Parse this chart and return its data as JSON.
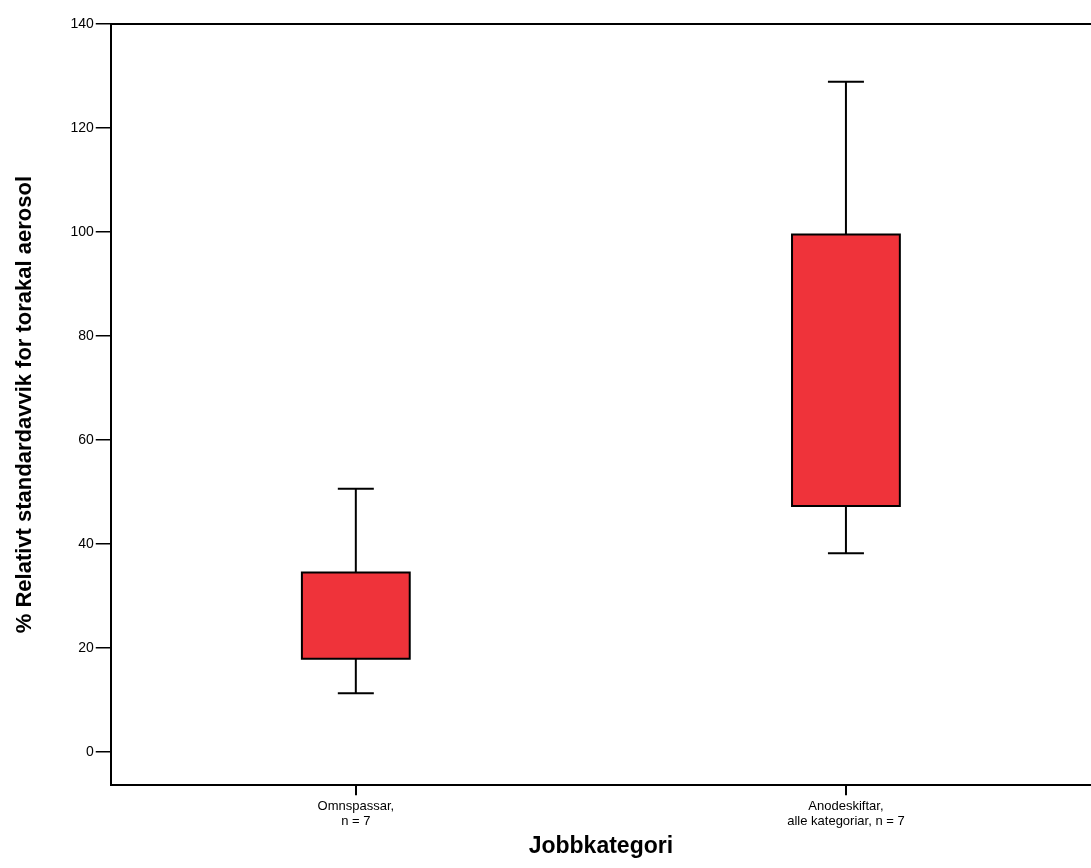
{
  "chart_data": {
    "type": "box",
    "xlabel": "Jobbkategori",
    "ylabel": "% Relativt standardavvik for torakal aerosol",
    "categories": [
      "Omnspassar,\nn = 7",
      "Anodeskiftar,\nalle kategoriar, n = 7"
    ],
    "color": "#ef333a",
    "boxes": [
      {
        "low": 11.3,
        "q1": 17.9,
        "q3": 34.5,
        "high": 50.6
      },
      {
        "low": 38.2,
        "q1": 47.3,
        "q3": 99.5,
        "high": 128.9
      }
    ],
    "ylim": [
      -6.4,
      140
    ],
    "yticks": [
      0,
      20,
      40,
      60,
      80,
      100,
      120,
      140
    ],
    "grid": false,
    "legend": false
  }
}
